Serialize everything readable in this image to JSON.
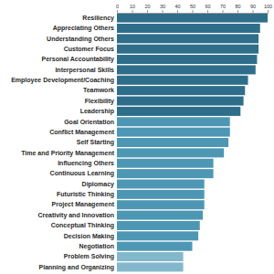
{
  "chart_data": {
    "type": "bar",
    "orientation": "horizontal",
    "categories": [
      "Resiliency",
      "Appreciating Others",
      "Understanding Others",
      "Customer Focus",
      "Personal Accountability",
      "Interpersonal Skills",
      "Employee Development/Coaching",
      "Teamwork",
      "Flexibility",
      "Leadership",
      "Goal Orientation",
      "Conflict Management",
      "Self Starting",
      "Time and Priority Management",
      "Influencing Others",
      "Continuous Learning",
      "Diplomacy",
      "Futuristic Thinking",
      "Project Management",
      "Creativity and Innovation",
      "Conceptual Thinking",
      "Decision Making",
      "Negotiation",
      "Problem Solving",
      "Planning and Organizing"
    ],
    "values": [
      100,
      95,
      94,
      94,
      93,
      92,
      87,
      85,
      84,
      82,
      75,
      75,
      74,
      71,
      64,
      64,
      58,
      58,
      58,
      57,
      55,
      54,
      50,
      44,
      44
    ],
    "colors": [
      "#2f6e8a",
      "#2f6e8a",
      "#2f6e8a",
      "#2f6e8a",
      "#2f6e8a",
      "#2f6e8a",
      "#2f6e8a",
      "#2f6e8a",
      "#2f6e8a",
      "#2f6e8a",
      "#4e97b4",
      "#4e97b4",
      "#4e97b4",
      "#4e97b4",
      "#4e97b4",
      "#4e97b4",
      "#4e97b4",
      "#4e97b4",
      "#4e97b4",
      "#4e97b4",
      "#4e97b4",
      "#4e97b4",
      "#4e97b4",
      "#83b8cc",
      "#83b8cc"
    ],
    "xlim": [
      0,
      100
    ],
    "xticks": [
      0,
      10,
      20,
      30,
      40,
      50,
      60,
      70,
      80,
      90,
      100
    ]
  }
}
